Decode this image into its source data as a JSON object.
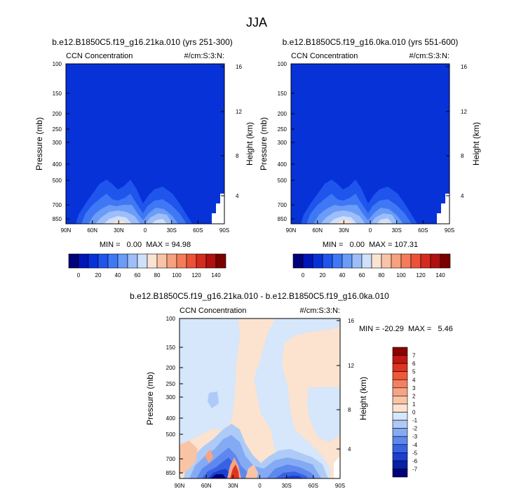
{
  "page_title": "JJA",
  "chart_data": [
    {
      "type": "heatmap",
      "title": "b.e12.B1850C5.f19_g16.21ka.010 (yrs 251-300)",
      "left_label": "CCN Concentration",
      "right_label": "#/cm:S:3:N:",
      "ylabel": "Pressure (mb)",
      "ylabel_right": "Height (km)",
      "x_ticks": [
        "90N",
        "60N",
        "30N",
        "0",
        "30S",
        "60S",
        "90S"
      ],
      "y_ticks": [
        "100",
        "150",
        "200",
        "250",
        "300",
        "400",
        "500",
        "700",
        "850"
      ],
      "y_ticks_right": [
        "16",
        "12",
        "8",
        "4"
      ],
      "stats": "MIN =   0.00  MAX = 94.98",
      "min": 0.0,
      "max": 94.98
    },
    {
      "type": "heatmap",
      "title": "b.e12.B1850C5.f19_g16.0ka.010 (yrs 551-600)",
      "left_label": "CCN Concentration",
      "right_label": "#/cm:S:3:N:",
      "ylabel": "Pressure (mb)",
      "ylabel_right": "Height (km)",
      "x_ticks": [
        "90N",
        "60N",
        "30N",
        "0",
        "30S",
        "60S",
        "90S"
      ],
      "y_ticks": [
        "100",
        "150",
        "200",
        "250",
        "300",
        "400",
        "500",
        "700",
        "850"
      ],
      "y_ticks_right": [
        "16",
        "12",
        "8",
        "4"
      ],
      "stats": "MIN =   0.00  MAX = 107.31",
      "min": 0.0,
      "max": 107.31
    },
    {
      "type": "heatmap",
      "title": "b.e12.B1850C5.f19_g16.21ka.010 - b.e12.B1850C5.f19_g16.0ka.010",
      "left_label": "CCN Concentration",
      "right_label": "#/cm:S:3:N:",
      "ylabel": "Pressure (mb)",
      "ylabel_right": "Height (km)",
      "x_ticks": [
        "90N",
        "60N",
        "30N",
        "0",
        "30S",
        "60S",
        "90S"
      ],
      "y_ticks": [
        "100",
        "150",
        "200",
        "250",
        "300",
        "400",
        "500",
        "700",
        "850"
      ],
      "y_ticks_right": [
        "16",
        "12",
        "8",
        "4"
      ],
      "stats": "MIN = -20.29  MAX =   5.46",
      "min": -20.29,
      "max": 5.46
    }
  ],
  "colorbar_abs": {
    "labels": [
      "0",
      "20",
      "40",
      "60",
      "80",
      "100",
      "120",
      "140"
    ],
    "colors": [
      "#00027a",
      "#0016b8",
      "#0632d8",
      "#1f55ec",
      "#3f78f4",
      "#6a9cf8",
      "#9dbef9",
      "#cfe0fb",
      "#fbe3d2",
      "#f9c3a6",
      "#f7a17e",
      "#f47c5a",
      "#ec5238",
      "#d62a1e",
      "#b01010",
      "#7a0000"
    ]
  },
  "colorbar_diff": {
    "labels": [
      "7",
      "6",
      "5",
      "4",
      "3",
      "2",
      "1",
      "0",
      "-1",
      "-2",
      "-3",
      "-4",
      "-5",
      "-6",
      "-7"
    ],
    "colors": [
      "#8c0000",
      "#c21610",
      "#e0341e",
      "#f0583a",
      "#f58060",
      "#f7a484",
      "#f9c4a6",
      "#fbe3cf",
      "#d6e6fb",
      "#aecbf8",
      "#85aaf4",
      "#5f88ee",
      "#3862e4",
      "#1a40d0",
      "#0620a8",
      "#00027a"
    ]
  }
}
